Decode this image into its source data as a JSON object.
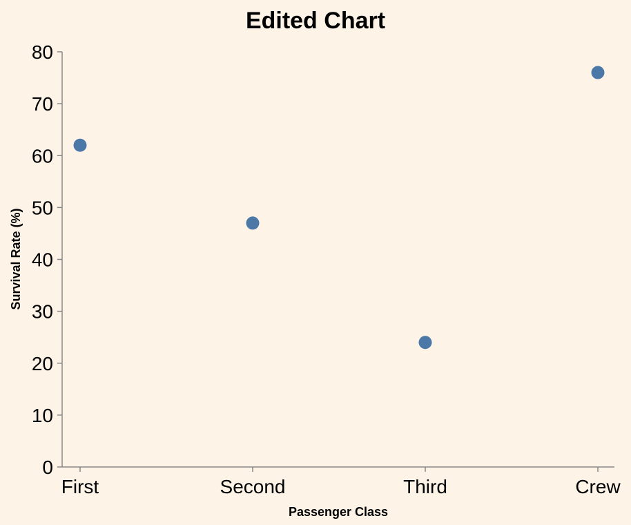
{
  "chart_data": {
    "type": "scatter",
    "title": "Edited Chart",
    "xlabel": "Passenger Class",
    "ylabel": "Survival Rate (%)",
    "categories": [
      "First",
      "Second",
      "Third",
      "Crew"
    ],
    "values": [
      62,
      47,
      24,
      76
    ],
    "ylim": [
      0,
      80
    ],
    "yticks": [
      0,
      10,
      20,
      30,
      40,
      50,
      60,
      70,
      80
    ],
    "grid": false,
    "point_color": "#4c78a8",
    "background_color": "#fdf3e7"
  }
}
